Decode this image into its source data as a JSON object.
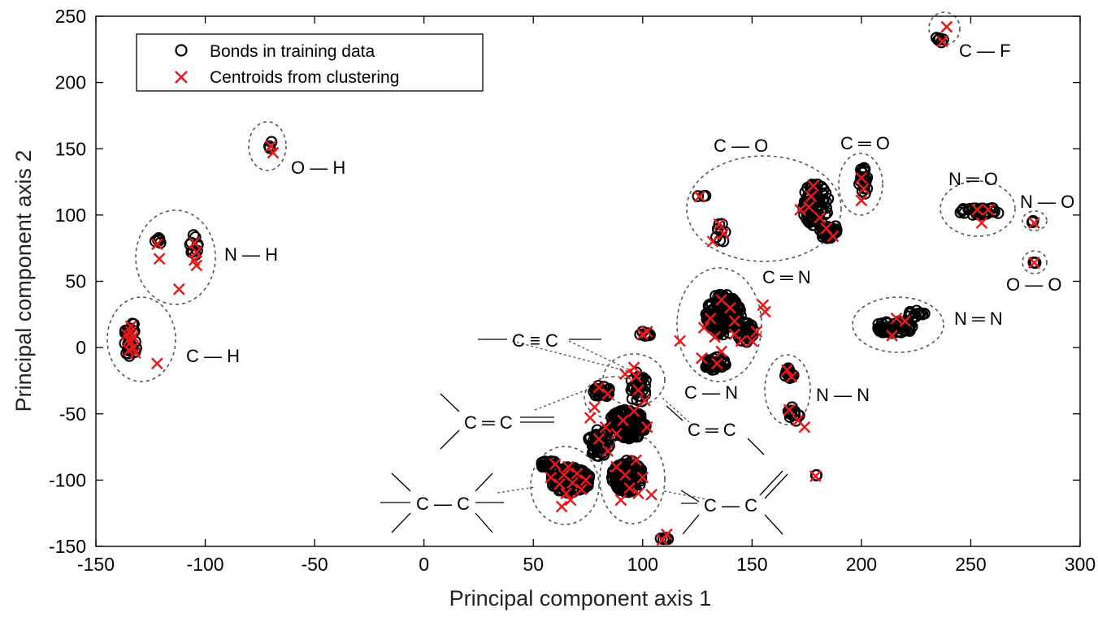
{
  "chart_data": {
    "type": "scatter",
    "xlabel": "Principal component axis 1",
    "ylabel": "Principal component axis 2",
    "xlim": [
      -150,
      300
    ],
    "ylim": [
      -150,
      250
    ],
    "xticks": [
      -150,
      -100,
      -50,
      0,
      50,
      100,
      150,
      200,
      250,
      300
    ],
    "yticks": [
      -150,
      -100,
      -50,
      0,
      50,
      100,
      150,
      200,
      250
    ],
    "grid": false,
    "legend_position": "top-left",
    "colors": {
      "bonds": "#000000",
      "centroids": "#e8181b",
      "clusters": "#555555"
    },
    "series": [
      {
        "name": "Bonds in training data",
        "marker": "circle",
        "blobs": [
          {
            "cx": -134,
            "cy": 6,
            "rx": 3,
            "ry": 14,
            "n": 30
          },
          {
            "cx": -121,
            "cy": 81,
            "rx": 2,
            "ry": 3,
            "n": 6
          },
          {
            "cx": -105,
            "cy": 77,
            "rx": 2,
            "ry": 9,
            "n": 12
          },
          {
            "cx": -70,
            "cy": 153,
            "rx": 1,
            "ry": 3,
            "n": 3
          },
          {
            "cx": 127,
            "cy": 114,
            "rx": 2,
            "ry": 1,
            "n": 3
          },
          {
            "cx": 136,
            "cy": 87,
            "rx": 3,
            "ry": 7,
            "n": 8
          },
          {
            "cx": 179,
            "cy": 108,
            "rx": 6,
            "ry": 16,
            "n": 90
          },
          {
            "cx": 185,
            "cy": 88,
            "rx": 4,
            "ry": 6,
            "n": 35
          },
          {
            "cx": 201,
            "cy": 125,
            "rx": 2,
            "ry": 12,
            "n": 20
          },
          {
            "cx": 254,
            "cy": 103,
            "rx": 10,
            "ry": 3,
            "n": 30
          },
          {
            "cx": 236,
            "cy": 233,
            "rx": 2,
            "ry": 3,
            "n": 6
          },
          {
            "cx": 279,
            "cy": 64,
            "rx": 1,
            "ry": 1,
            "n": 3
          },
          {
            "cx": 279,
            "cy": 95,
            "rx": 1,
            "ry": 1,
            "n": 2
          },
          {
            "cx": 137,
            "cy": 25,
            "rx": 8,
            "ry": 16,
            "n": 150
          },
          {
            "cx": 147,
            "cy": 12,
            "rx": 4,
            "ry": 8,
            "n": 40
          },
          {
            "cx": 133,
            "cy": -12,
            "rx": 5,
            "ry": 5,
            "n": 30
          },
          {
            "cx": 215,
            "cy": 15,
            "rx": 9,
            "ry": 5,
            "n": 50
          },
          {
            "cx": 225,
            "cy": 25,
            "rx": 4,
            "ry": 3,
            "n": 12
          },
          {
            "cx": 167,
            "cy": -20,
            "rx": 2,
            "ry": 5,
            "n": 14
          },
          {
            "cx": 169,
            "cy": -50,
            "rx": 3,
            "ry": 6,
            "n": 14
          },
          {
            "cx": 179,
            "cy": -97,
            "rx": 1,
            "ry": 1,
            "n": 2
          },
          {
            "cx": 110,
            "cy": -143,
            "rx": 2,
            "ry": 3,
            "n": 5
          },
          {
            "cx": 100,
            "cy": 10,
            "rx": 4,
            "ry": 2,
            "n": 10
          },
          {
            "cx": 98,
            "cy": -30,
            "rx": 4,
            "ry": 12,
            "n": 30
          },
          {
            "cx": 81,
            "cy": -33,
            "rx": 4,
            "ry": 5,
            "n": 30
          },
          {
            "cx": 93,
            "cy": -58,
            "rx": 9,
            "ry": 11,
            "n": 140
          },
          {
            "cx": 80,
            "cy": -72,
            "rx": 5,
            "ry": 10,
            "n": 50
          },
          {
            "cx": 67,
            "cy": -100,
            "rx": 9,
            "ry": 10,
            "n": 150
          },
          {
            "cx": 57,
            "cy": -88,
            "rx": 4,
            "ry": 3,
            "n": 20
          },
          {
            "cx": 93,
            "cy": -97,
            "rx": 7,
            "ry": 12,
            "n": 130
          }
        ]
      },
      {
        "name": "Centroids from clustering",
        "marker": "x",
        "points": [
          [
            -134,
            12
          ],
          [
            -134,
            4
          ],
          [
            -133,
            8
          ],
          [
            -135,
            -2
          ],
          [
            -132,
            -4
          ],
          [
            -134,
            16
          ],
          [
            -136,
            10
          ],
          [
            -133,
            0
          ],
          [
            -135,
            6
          ],
          [
            -122,
            -12
          ],
          [
            -122,
            78
          ],
          [
            -121,
            67
          ],
          [
            -105,
            79
          ],
          [
            -104,
            72
          ],
          [
            -105,
            66
          ],
          [
            -104,
            62
          ],
          [
            -112,
            44
          ],
          [
            -70,
            152
          ],
          [
            -69,
            147
          ],
          [
            126,
            114
          ],
          [
            135,
            93
          ],
          [
            137,
            86
          ],
          [
            132,
            80
          ],
          [
            178,
            122
          ],
          [
            177,
            114
          ],
          [
            176,
            106
          ],
          [
            181,
            98
          ],
          [
            172,
            104
          ],
          [
            184,
            90
          ],
          [
            187,
            84
          ],
          [
            200,
            128
          ],
          [
            201,
            120
          ],
          [
            200,
            111
          ],
          [
            253,
            104
          ],
          [
            258,
            104
          ],
          [
            255,
            94
          ],
          [
            237,
            231
          ],
          [
            239,
            242
          ],
          [
            279,
            64
          ],
          [
            279,
            94
          ],
          [
            136,
            36
          ],
          [
            142,
            20
          ],
          [
            133,
            8
          ],
          [
            128,
            15
          ],
          [
            136,
            -3
          ],
          [
            134,
            -12
          ],
          [
            127,
            -8
          ],
          [
            142,
            10
          ],
          [
            152,
            12
          ],
          [
            156,
            27
          ],
          [
            155,
            32
          ],
          [
            150,
            5
          ],
          [
            145,
            5
          ],
          [
            131,
            22
          ],
          [
            140,
            30
          ],
          [
            214,
            9
          ],
          [
            216,
            22
          ],
          [
            220,
            20
          ],
          [
            166,
            -17
          ],
          [
            168,
            -22
          ],
          [
            167,
            -47
          ],
          [
            171,
            -55
          ],
          [
            174,
            -60
          ],
          [
            179,
            -97
          ],
          [
            109,
            -145
          ],
          [
            111,
            -141
          ],
          [
            117,
            5
          ],
          [
            102,
            12
          ],
          [
            100,
            10
          ],
          [
            97,
            -22
          ],
          [
            98,
            -32
          ],
          [
            101,
            -40
          ],
          [
            96,
            -15
          ],
          [
            92,
            -20
          ],
          [
            84,
            -35
          ],
          [
            80,
            -30
          ],
          [
            78,
            -45
          ],
          [
            76,
            -53
          ],
          [
            83,
            -60
          ],
          [
            80,
            -69
          ],
          [
            84,
            -78
          ],
          [
            91,
            -55
          ],
          [
            96,
            -48
          ],
          [
            102,
            -60
          ],
          [
            88,
            -65
          ],
          [
            60,
            -88
          ],
          [
            64,
            -96
          ],
          [
            68,
            -102
          ],
          [
            65,
            -110
          ],
          [
            70,
            -95
          ],
          [
            67,
            -115
          ],
          [
            72,
            -107
          ],
          [
            63,
            -120
          ],
          [
            62,
            -103
          ],
          [
            66,
            -90
          ],
          [
            74,
            -100
          ],
          [
            58,
            -98
          ],
          [
            88,
            -90
          ],
          [
            92,
            -96
          ],
          [
            94,
            -106
          ],
          [
            97,
            -85
          ],
          [
            90,
            -115
          ],
          [
            100,
            -98
          ],
          [
            98,
            -110
          ],
          [
            104,
            -111
          ]
        ]
      }
    ],
    "annotations": [
      {
        "label": "C—H",
        "at": [
          -128,
          0
        ]
      },
      {
        "label": "N—H",
        "at": [
          -122,
          59
        ]
      },
      {
        "label": "O—H",
        "at": [
          -70,
          152
        ]
      },
      {
        "label": "C—O",
        "at": [
          156,
          104
        ]
      },
      {
        "label": "C═O",
        "at": [
          200,
          122
        ]
      },
      {
        "label": "C—F",
        "at": [
          236,
          236
        ]
      },
      {
        "label": "N═O",
        "at": [
          250,
          104
        ]
      },
      {
        "label": "N—O",
        "at": [
          279,
          95
        ]
      },
      {
        "label": "O—O",
        "at": [
          279,
          64
        ]
      },
      {
        "label": "C═N",
        "at": [
          140,
          27
        ]
      },
      {
        "label": "N═N",
        "at": [
          217,
          16
        ]
      },
      {
        "label": "C—N",
        "at": [
          134,
          -14
        ]
      },
      {
        "label": "N—N",
        "at": [
          168,
          -35
        ]
      },
      {
        "label": "C≡C",
        "at": [
          98,
          -26
        ]
      },
      {
        "label": "C═C",
        "at": [
          85,
          -60
        ]
      },
      {
        "label": "C—C",
        "at": [
          80,
          -100
        ]
      }
    ],
    "labels": {
      "c_h": "C — H",
      "n_h": "N — H",
      "o_h": "O — H",
      "c_o": "C — O",
      "c_o_double": "C ═ O",
      "c_f": "C — F",
      "n_o_double": "N ═ O",
      "n_o": "N — O",
      "o_o": "O — O",
      "c_n_double": "C ═ N",
      "n_n_double": "N ═ N",
      "c_n": "C — N",
      "n_n": "N — N",
      "c_c_triple": "C ≡ C",
      "c_c_double_left": "C ═ C",
      "c_c_double_right": "C ═ C",
      "c_c_single_left": "C — C",
      "c_c_single_right": "C — C"
    }
  }
}
